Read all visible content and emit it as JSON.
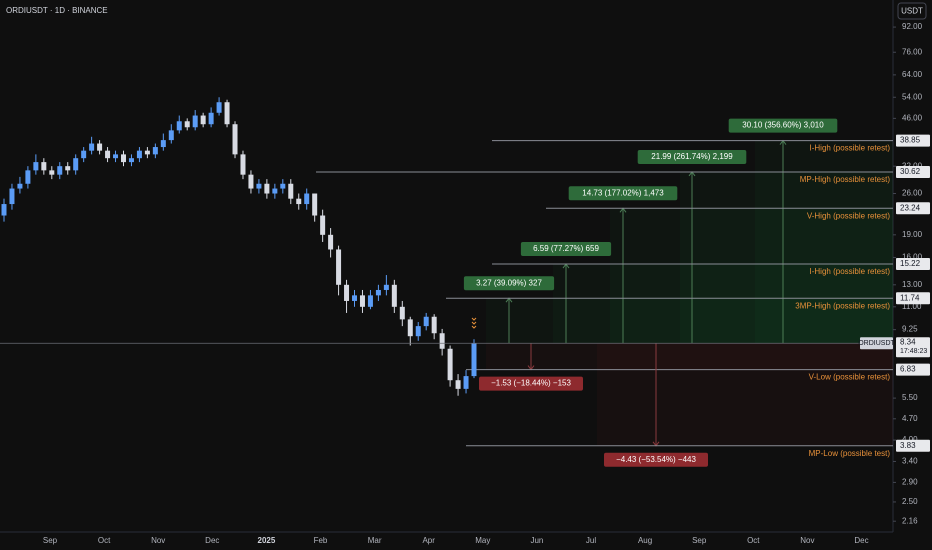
{
  "chart_data": {
    "type": "candlestick",
    "title": "ORDIUSDT · 1D · BINANCE",
    "currency": "USDT",
    "symbol": "ORDIUSDT",
    "countdown": "17:48:23",
    "log_scale": true,
    "up_color": "#5b9cf6",
    "down_color": "#d8dbe3",
    "ylim": [
      1.99,
      113
    ],
    "yticks": [
      {
        "value": 92,
        "label": "92.00"
      },
      {
        "value": 76,
        "label": "76.00"
      },
      {
        "value": 64,
        "label": "64.00"
      },
      {
        "value": 54,
        "label": "54.00"
      },
      {
        "value": 46,
        "label": "46.00"
      },
      {
        "value": 32,
        "label": "32.00"
      },
      {
        "value": 26,
        "label": "26.00"
      },
      {
        "value": 19,
        "label": "19.00"
      },
      {
        "value": 16,
        "label": "16.00"
      },
      {
        "value": 13,
        "label": "13.00"
      },
      {
        "value": 11,
        "label": "11.00"
      },
      9.25,
      {
        "value": 5.5,
        "label": "5.50"
      },
      {
        "value": 4.7,
        "label": "4.70"
      },
      {
        "value": 4,
        "label": "4.00"
      },
      {
        "value": 3.4,
        "label": "3.40"
      },
      {
        "value": 2.9,
        "label": "2.90"
      },
      {
        "value": 2.5,
        "label": "2.50"
      },
      2.16
    ],
    "months": [
      "Sep",
      "Oct",
      "Nov",
      "Dec",
      "2025",
      "Feb",
      "Mar",
      "Apr",
      "May",
      "Jun",
      "Jul",
      "Aug",
      "Sep",
      "Oct",
      "Nov",
      "Dec"
    ],
    "open": [
      22,
      24,
      27,
      28,
      31,
      33,
      31,
      30,
      32,
      31,
      34,
      36,
      38,
      36,
      34,
      35,
      33,
      34,
      36,
      35,
      37,
      39,
      42,
      45,
      43,
      47,
      44,
      48,
      52,
      44,
      35,
      30,
      27,
      28,
      26,
      27,
      28,
      25,
      24,
      26,
      22,
      19,
      17,
      13,
      11.5,
      12,
      11,
      12,
      12.5,
      13,
      11,
      10,
      8.8,
      9.5,
      10.2,
      9,
      8,
      6.3,
      5.9,
      6.5
    ],
    "high": [
      25,
      28,
      29.5,
      32,
      35,
      34,
      32,
      33,
      33,
      35,
      37,
      40,
      39,
      37,
      36,
      36,
      35,
      37,
      37,
      38,
      41,
      44,
      47,
      46,
      49,
      48,
      50,
      54,
      53,
      45,
      36,
      31,
      29,
      29,
      28,
      29,
      29,
      26,
      27,
      26,
      23,
      20,
      17.5,
      13.5,
      12.5,
      12.5,
      12.5,
      13,
      14,
      13.5,
      11.5,
      10.2,
      9.8,
      10.5,
      10.4,
      9.3,
      8.2,
      6.6,
      6.8,
      8.6
    ],
    "low": [
      21,
      23,
      26,
      27,
      30,
      30,
      29,
      29,
      30,
      30,
      33,
      35,
      35,
      33,
      33,
      32,
      32,
      33,
      34,
      34,
      36,
      38,
      41,
      42,
      42,
      43,
      43,
      47,
      43,
      34,
      29,
      26,
      26,
      25,
      25,
      26,
      24,
      23,
      23,
      21,
      18,
      16,
      12,
      10.5,
      11,
      10.5,
      10.8,
      11.5,
      12,
      10.5,
      9.5,
      8.2,
      8.5,
      9.2,
      8.6,
      7.6,
      6,
      5.6,
      5.7,
      6.4
    ],
    "close": [
      24,
      27,
      28,
      31,
      33,
      31,
      30,
      32,
      31,
      34,
      36,
      38,
      36,
      34,
      35,
      33,
      34,
      36,
      35,
      37,
      39,
      42,
      45,
      43,
      47,
      44,
      48,
      52,
      44,
      35,
      30,
      27,
      28,
      26,
      27,
      28,
      25,
      24,
      26,
      22,
      19,
      17,
      13,
      11.5,
      12,
      11,
      12,
      12.5,
      13,
      11,
      10,
      8.8,
      9.5,
      10.2,
      9,
      8,
      6.3,
      5.9,
      6.5,
      8.34
    ],
    "levels": [
      {
        "value": 38.85,
        "label": "I-High (possible retest)",
        "measure": "30.10 (356.60%) 3,010",
        "color": "#2e6b3a"
      },
      {
        "value": 30.62,
        "label": "MP-High (possible retest)",
        "measure": "21.99 (261.74%) 2,199",
        "color": "#2e6b3a"
      },
      {
        "value": 23.24,
        "label": "V-High (possible retest)",
        "measure": "14.73 (177.02%) 1,473",
        "color": "#2e6b3a"
      },
      {
        "value": 15.22,
        "label": "I-High (possible retest)",
        "measure": "6.59 (77.27%) 659",
        "color": "#2e6b3a"
      },
      {
        "value": 11.74,
        "label": "3MP-High (possible retest)",
        "measure": "3.27 (39.09%) 327",
        "color": "#2e6b3a"
      },
      {
        "value": 6.83,
        "label": "V-Low (possible retest)",
        "measure": "−1.53 (−18.44%) −153",
        "color": "#8e2a2e"
      },
      {
        "value": 3.83,
        "label": "MP-Low (possible test)",
        "measure": "−4.43 (−53.54%) −443",
        "color": "#8e2a2e"
      }
    ]
  }
}
